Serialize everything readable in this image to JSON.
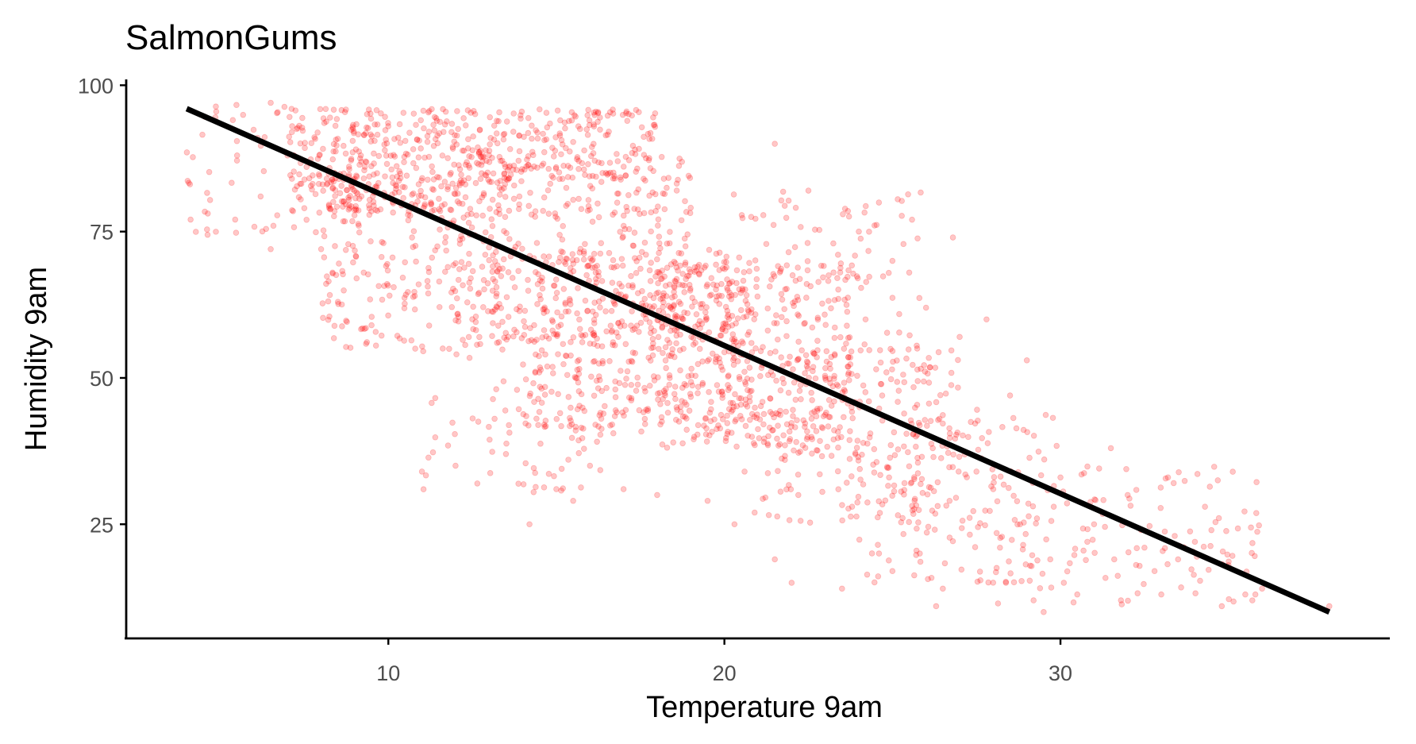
{
  "chart_data": {
    "type": "scatter",
    "title": "SalmonGums",
    "xlabel": "Temperature 9am",
    "ylabel": "Humidity 9am",
    "xlim": [
      2.2,
      39.8
    ],
    "ylim": [
      5.5,
      101
    ],
    "x_ticks": [
      10,
      20,
      30
    ],
    "y_ticks": [
      25,
      50,
      75,
      100
    ],
    "grid": false,
    "point_color": "#ff0000",
    "point_opacity": 0.22,
    "line_color": "#000000",
    "trend_line": {
      "x": [
        4.0,
        38.0
      ],
      "y": [
        96.0,
        10.0
      ]
    },
    "point_groups": [
      {
        "x_range": [
          4.0,
          8.0
        ],
        "y_range": [
          72,
          97
        ],
        "count": 50
      },
      {
        "x_range": [
          7.0,
          12.0
        ],
        "y_range": [
          78,
          96
        ],
        "count": 300
      },
      {
        "x_range": [
          12.0,
          18.0
        ],
        "y_range": [
          84,
          96
        ],
        "count": 210
      },
      {
        "x_range": [
          8.0,
          14.0
        ],
        "y_range": [
          55,
          85
        ],
        "count": 250
      },
      {
        "x_range": [
          12.0,
          19.0
        ],
        "y_range": [
          55,
          88
        ],
        "count": 360
      },
      {
        "x_range": [
          14.0,
          21.0
        ],
        "y_range": [
          40,
          72
        ],
        "count": 420
      },
      {
        "x_range": [
          18.0,
          24.0
        ],
        "y_range": [
          38,
          70
        ],
        "count": 340
      },
      {
        "x_range": [
          11.0,
          17.0
        ],
        "y_range": [
          30,
          55
        ],
        "count": 80
      },
      {
        "x_range": [
          21.0,
          27.0
        ],
        "y_range": [
          25,
          55
        ],
        "count": 220
      },
      {
        "x_range": [
          24.0,
          30.0
        ],
        "y_range": [
          15,
          45
        ],
        "count": 150
      },
      {
        "x_range": [
          28.0,
          36.0
        ],
        "y_range": [
          11,
          35
        ],
        "count": 110
      },
      {
        "x_range": [
          20.0,
          26.0
        ],
        "y_range": [
          55,
          82
        ],
        "count": 90
      }
    ],
    "points": [
      [
        38.0,
        11
      ],
      [
        35.5,
        13
      ],
      [
        35.8,
        13
      ],
      [
        34.8,
        11
      ],
      [
        29.5,
        10
      ],
      [
        29.2,
        12
      ],
      [
        6.5,
        97
      ],
      [
        5.5,
        88
      ],
      [
        6.2,
        81
      ],
      [
        6.5,
        72
      ],
      [
        11.0,
        34
      ],
      [
        14.2,
        25
      ],
      [
        34.3,
        28
      ],
      [
        33.2,
        33
      ],
      [
        31.5,
        38
      ],
      [
        26.8,
        74
      ],
      [
        21.5,
        90
      ],
      [
        22.5,
        82
      ],
      [
        30.0,
        33
      ],
      [
        32.5,
        21
      ],
      [
        33.5,
        19
      ],
      [
        32.0,
        30
      ],
      [
        28.5,
        47
      ],
      [
        29.0,
        53
      ],
      [
        27.8,
        60
      ],
      [
        25.5,
        68
      ],
      [
        26.0,
        62
      ],
      [
        24.0,
        75
      ],
      [
        25.0,
        70
      ],
      [
        24.2,
        60
      ],
      [
        27.0,
        57
      ],
      [
        29.8,
        28
      ],
      [
        31.0,
        25
      ],
      [
        30.5,
        13
      ],
      [
        31.8,
        12
      ],
      [
        33.0,
        13
      ],
      [
        26.5,
        14
      ],
      [
        26.3,
        11
      ],
      [
        25.0,
        17
      ],
      [
        24.6,
        20
      ],
      [
        23.5,
        14
      ],
      [
        22.0,
        15
      ],
      [
        21.5,
        19
      ],
      [
        20.3,
        25
      ],
      [
        20.9,
        27
      ],
      [
        19.5,
        29
      ],
      [
        18.0,
        30
      ],
      [
        17.0,
        31
      ],
      [
        15.5,
        29
      ],
      [
        15.0,
        31
      ],
      [
        16.0,
        35
      ],
      [
        13.5,
        37
      ],
      [
        12.0,
        35
      ],
      [
        10.8,
        55
      ],
      [
        9.5,
        59
      ],
      [
        8.5,
        63
      ],
      [
        8.0,
        72
      ],
      [
        7.5,
        79
      ],
      [
        9.0,
        84
      ],
      [
        7.0,
        88
      ],
      [
        28.2,
        21
      ],
      [
        28.8,
        25
      ],
      [
        30.1,
        15
      ],
      [
        32.8,
        17
      ],
      [
        34.0,
        22
      ],
      [
        36.0,
        14
      ],
      [
        23.0,
        50
      ],
      [
        22.6,
        44
      ],
      [
        24.3,
        46
      ],
      [
        25.7,
        40
      ],
      [
        26.2,
        38
      ],
      [
        27.5,
        34
      ],
      [
        28.0,
        31
      ],
      [
        29.3,
        26
      ],
      [
        30.8,
        22
      ],
      [
        31.6,
        19
      ],
      [
        33.4,
        23
      ],
      [
        35.0,
        18
      ],
      [
        22.2,
        30
      ],
      [
        23.8,
        28
      ],
      [
        24.9,
        33
      ],
      [
        26.7,
        29
      ],
      [
        21.8,
        36
      ],
      [
        20.6,
        34
      ]
    ]
  }
}
